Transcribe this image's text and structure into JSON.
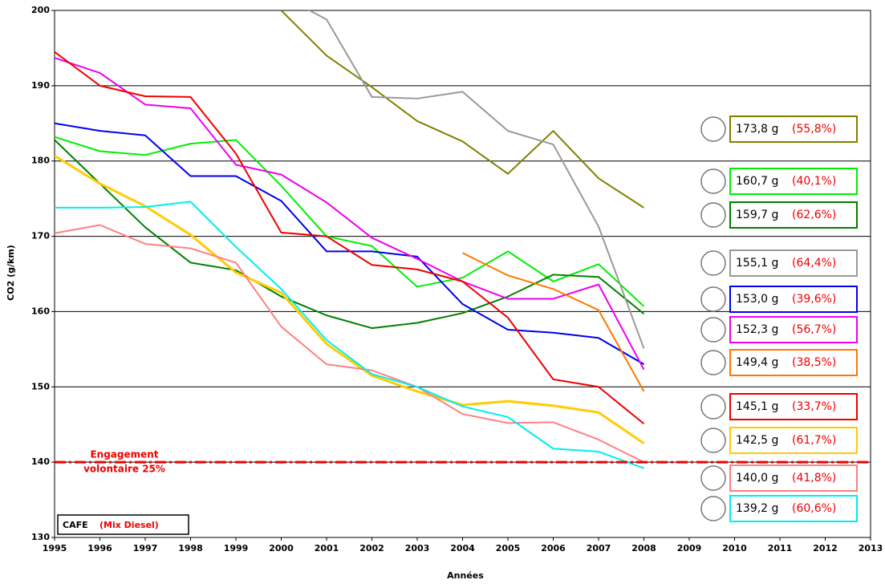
{
  "chart_data": {
    "type": "line",
    "xlabel": "Années",
    "ylabel": "CO2 (g/km)",
    "x": [
      1995,
      1996,
      1997,
      1998,
      1999,
      2000,
      2001,
      2002,
      2003,
      2004,
      2005,
      2006,
      2007,
      2008
    ],
    "xlim": [
      1995,
      2013
    ],
    "xticks": [
      1995,
      1996,
      1997,
      1998,
      1999,
      2000,
      2001,
      2002,
      2003,
      2004,
      2005,
      2006,
      2007,
      2008,
      2009,
      2010,
      2011,
      2012,
      2013
    ],
    "ylim": [
      130,
      200
    ],
    "yticks": [
      130,
      140,
      150,
      160,
      170,
      180,
      190,
      200
    ],
    "grid": true,
    "series": [
      {
        "color": "#808000",
        "width": 2,
        "label": "173,8 g",
        "share": "(55,8%)",
        "values": [
          null,
          null,
          null,
          null,
          null,
          200,
          194,
          189.8,
          185.3,
          182.6,
          178.3,
          184,
          177.7,
          173.8
        ]
      },
      {
        "color": "#00ee00",
        "width": 2,
        "label": "160,7 g",
        "share": "(40,1%)",
        "values": [
          183.2,
          181.3,
          180.8,
          182.3,
          182.8,
          176.7,
          170,
          168.7,
          163.3,
          164.5,
          168,
          164,
          166.3,
          160.7
        ]
      },
      {
        "color": "#008000",
        "width": 2,
        "label": "159,7 g",
        "share": "(62,6%)",
        "values": [
          182.8,
          177,
          171.2,
          166.5,
          165.5,
          162,
          159.5,
          157.8,
          158.5,
          159.8,
          162,
          164.9,
          164.6,
          159.7
        ]
      },
      {
        "color": "#999999",
        "width": 2,
        "label": "155,1 g",
        "share": "(64,4%)",
        "values": [
          null,
          null,
          null,
          null,
          null,
          202,
          198.8,
          188.5,
          188.3,
          189.2,
          184,
          182.2,
          171.3,
          155.1
        ]
      },
      {
        "color": "#0000ee",
        "width": 2,
        "label": "153,0 g",
        "share": "(39,6%)",
        "values": [
          185,
          184,
          183.4,
          178,
          178,
          174.7,
          168,
          168,
          167.3,
          161,
          157.6,
          157.2,
          156.5,
          153
        ]
      },
      {
        "color": "#ee00ee",
        "width": 2,
        "label": "152,3 g",
        "share": "(56,7%)",
        "values": [
          193.7,
          191.7,
          187.5,
          187,
          179.5,
          178.2,
          174.5,
          169.8,
          167,
          164,
          161.7,
          161.7,
          163.6,
          152.3
        ]
      },
      {
        "color": "#ff7700",
        "width": 2,
        "label": "149,4 g",
        "share": "(38,5%)",
        "values": [
          null,
          null,
          null,
          null,
          null,
          null,
          null,
          null,
          null,
          167.8,
          164.8,
          163,
          160.2,
          149.4
        ]
      },
      {
        "color": "#ee0000",
        "width": 2,
        "label": "145,1 g",
        "share": "(33,7%)",
        "values": [
          194.5,
          190,
          188.6,
          188.5,
          181,
          170.5,
          170,
          166.2,
          165.6,
          164,
          159.2,
          151,
          150,
          145.1
        ]
      },
      {
        "color": "#ffcc00",
        "width": 3,
        "label": "142,5 g",
        "share": "(61,7%)",
        "values": [
          180.7,
          177,
          174,
          170.2,
          165.2,
          162.5,
          155.7,
          151.5,
          149.4,
          147.6,
          148.1,
          147.5,
          146.6,
          142.5
        ]
      },
      {
        "color": "#ff8080",
        "width": 2,
        "label": "140,0 g",
        "share": "(41,8%)",
        "values": [
          170.4,
          171.5,
          169,
          168.4,
          166.5,
          158,
          153,
          152.2,
          150,
          146.4,
          145.2,
          145.3,
          143,
          140
        ]
      },
      {
        "color": "#00eeee",
        "width": 2,
        "label": "139,2 g",
        "share": "(60,6%)",
        "values": [
          173.8,
          173.8,
          173.9,
          174.6,
          168.6,
          163,
          156.2,
          151.7,
          150,
          147.4,
          146,
          141.8,
          141.4,
          139.2
        ]
      }
    ],
    "target": {
      "value": 140,
      "color": "#ee0000",
      "text": [
        "Engagement",
        "volontaire 25%"
      ]
    },
    "note": {
      "text": "CAFE",
      "detail": "(Mix Diesel)"
    }
  }
}
